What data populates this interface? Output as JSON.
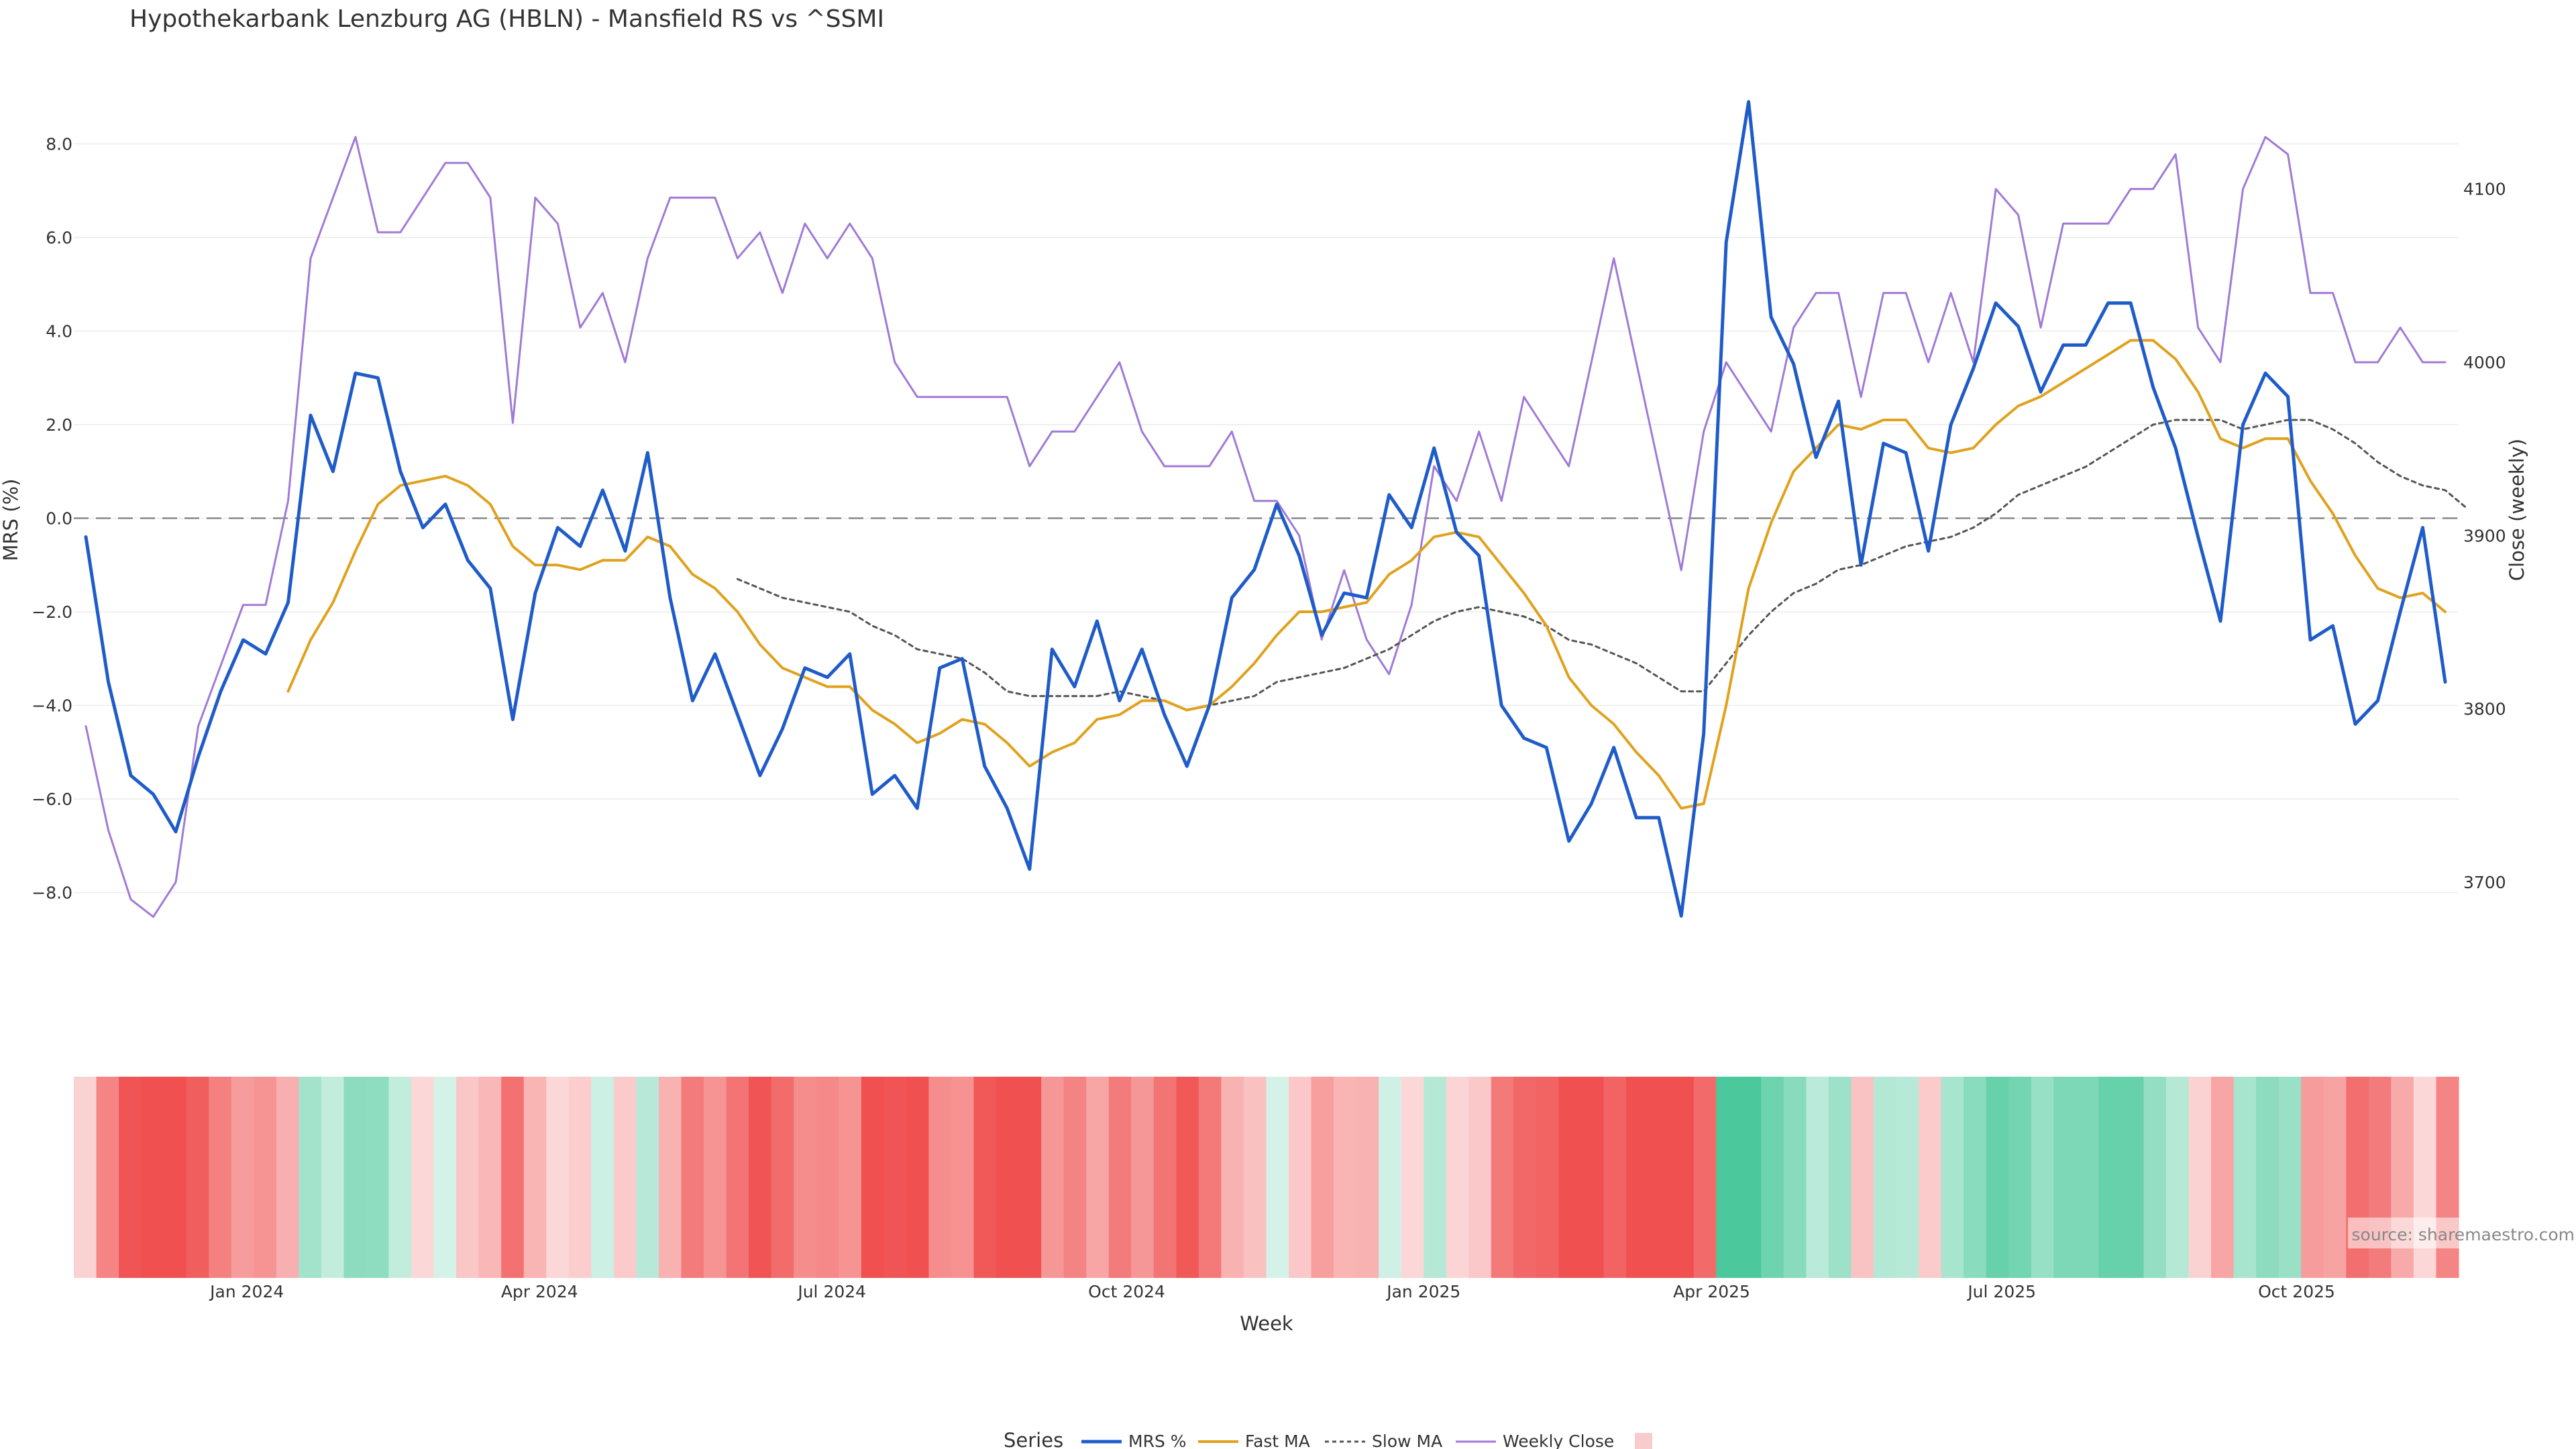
{
  "chart_data": {
    "type": "line",
    "title": "Hypothekarbank Lenzburg AG (HBLN) - Mansfield RS vs ^SSMI",
    "xlabel": "Week",
    "ylabel_left": "MRS (%)",
    "ylabel_right": "Close (weekly)",
    "ylim_left": [
      -10,
      10
    ],
    "ylim_right": [
      3640,
      4180
    ],
    "left_ticks": [
      8,
      6,
      4,
      2,
      0,
      -2,
      -4,
      -6,
      -8
    ],
    "left_tick_labels": [
      "8.0",
      "6.0",
      "4.0",
      "2.0",
      "0.0",
      "−2.0",
      "−4.0",
      "−6.0",
      "−8.0"
    ],
    "right_ticks": [
      4100,
      4000,
      3900,
      3800,
      3700
    ],
    "right_tick_labels": [
      "4100",
      "4000",
      "3900",
      "3800",
      "3700"
    ],
    "x_ticks": [
      {
        "label": "Jan 2024",
        "week": 7.7
      },
      {
        "label": "Apr 2024",
        "week": 20.7
      },
      {
        "label": "Jul 2024",
        "week": 33.7
      },
      {
        "label": "Oct 2024",
        "week": 46.8
      },
      {
        "label": "Jan 2025",
        "week": 60.0
      },
      {
        "label": "Apr 2025",
        "week": 72.8
      },
      {
        "label": "Jul 2025",
        "week": 85.7
      },
      {
        "label": "Oct 2025",
        "week": 98.8
      }
    ],
    "zero_line": 0,
    "series": [
      {
        "name": "MRS %",
        "axis": "left",
        "color": "#1f5cc9",
        "values": [
          -0.4,
          -3.5,
          -5.5,
          -5.9,
          -6.7,
          -5.1,
          -3.7,
          -2.6,
          -2.9,
          -1.8,
          2.2,
          1.0,
          3.1,
          3.0,
          1.0,
          -0.2,
          0.3,
          -0.9,
          -1.5,
          -4.3,
          -1.6,
          -0.2,
          -0.6,
          0.6,
          -0.7,
          1.4,
          -1.7,
          -3.9,
          -2.9,
          -4.2,
          -5.5,
          -4.5,
          -3.2,
          -3.4,
          -2.9,
          -5.9,
          -5.5,
          -6.2,
          -3.2,
          -3.0,
          -5.3,
          -6.2,
          -7.5,
          -2.8,
          -3.6,
          -2.2,
          -3.9,
          -2.8,
          -4.2,
          -5.3,
          -4.0,
          -1.7,
          -1.1,
          0.3,
          -0.8,
          -2.5,
          -1.6,
          -1.7,
          0.5,
          -0.2,
          1.5,
          -0.3,
          -0.8,
          -4.0,
          -4.7,
          -4.9,
          -6.9,
          -6.1,
          -4.9,
          -6.4,
          -6.4,
          -8.5,
          -4.6,
          5.9,
          8.9,
          4.3,
          3.3,
          1.3,
          2.5,
          -1.0,
          1.6,
          1.4,
          -0.7,
          2.0,
          3.2,
          4.6,
          4.1,
          2.7,
          3.7,
          3.7,
          4.6,
          4.6,
          2.8,
          1.5,
          -0.4,
          -2.2,
          2.0,
          3.1,
          2.6,
          -2.6,
          -2.3,
          -4.4,
          -3.9,
          -2.0,
          -0.2,
          -3.5
        ]
      },
      {
        "name": "Fast MA",
        "axis": "left",
        "color": "#e0a21e",
        "start": 9,
        "values": [
          -3.7,
          -2.6,
          -1.8,
          -0.7,
          0.3,
          0.7,
          0.8,
          0.9,
          0.7,
          0.3,
          -0.6,
          -1.0,
          -1.0,
          -1.1,
          -0.9,
          -0.9,
          -0.4,
          -0.6,
          -1.2,
          -1.5,
          -2.0,
          -2.7,
          -3.2,
          -3.4,
          -3.6,
          -3.6,
          -4.1,
          -4.4,
          -4.8,
          -4.6,
          -4.3,
          -4.4,
          -4.8,
          -5.3,
          -5.0,
          -4.8,
          -4.3,
          -4.2,
          -3.9,
          -3.9,
          -4.1,
          -4.0,
          -3.6,
          -3.1,
          -2.5,
          -2.0,
          -2.0,
          -1.9,
          -1.8,
          -1.2,
          -0.9,
          -0.4,
          -0.3,
          -0.4,
          -1.0,
          -1.6,
          -2.3,
          -3.4,
          -4.0,
          -4.4,
          -5.0,
          -5.5,
          -6.2,
          -6.1,
          -4.0,
          -1.5,
          -0.1,
          1.0,
          1.5,
          2.0,
          1.9,
          2.1,
          2.1,
          1.5,
          1.4,
          1.5,
          2.0,
          2.4,
          2.6,
          2.9,
          3.2,
          3.5,
          3.8,
          3.8,
          3.4,
          2.7,
          1.7,
          1.5,
          1.7,
          1.7,
          0.8,
          0.1,
          -0.8,
          -1.5,
          -1.7,
          -1.6,
          -2.0
        ]
      },
      {
        "name": "Slow MA",
        "axis": "left",
        "color": "#555555",
        "dashed": true,
        "start": 29,
        "values": [
          -1.3,
          -1.5,
          -1.7,
          -1.8,
          -1.9,
          -2.0,
          -2.3,
          -2.5,
          -2.8,
          -2.9,
          -3.0,
          -3.3,
          -3.7,
          -3.8,
          -3.8,
          -3.8,
          -3.8,
          -3.7,
          -3.8,
          -3.9,
          -4.1,
          -4.0,
          -3.9,
          -3.8,
          -3.5,
          -3.4,
          -3.3,
          -3.2,
          -3.0,
          -2.8,
          -2.5,
          -2.2,
          -2.0,
          -1.9,
          -2.0,
          -2.1,
          -2.3,
          -2.6,
          -2.7,
          -2.9,
          -3.1,
          -3.4,
          -3.7,
          -3.7,
          -3.1,
          -2.5,
          -2.0,
          -1.6,
          -1.4,
          -1.1,
          -1.0,
          -0.8,
          -0.6,
          -0.5,
          -0.4,
          -0.2,
          0.1,
          0.5,
          0.7,
          0.9,
          1.1,
          1.4,
          1.7,
          2.0,
          2.1,
          2.1,
          2.1,
          1.9,
          2.0,
          2.1,
          2.1,
          1.9,
          1.6,
          1.2,
          0.9,
          0.7,
          0.6,
          0.2
        ]
      },
      {
        "name": "Weekly Close",
        "axis": "right",
        "color": "#a07ad6",
        "values": [
          3790,
          3730,
          3690,
          3680,
          3700,
          3790,
          3825,
          3860,
          3860,
          3920,
          4060,
          4095,
          4130,
          4075,
          4075,
          4095,
          4115,
          4115,
          4095,
          3965,
          4095,
          4080,
          4020,
          4040,
          4000,
          4060,
          4095,
          4095,
          4095,
          4060,
          4075,
          4040,
          4080,
          4060,
          4080,
          4060,
          4000,
          3980,
          3980,
          3980,
          3980,
          3980,
          3940,
          3960,
          3960,
          3980,
          4000,
          3960,
          3940,
          3940,
          3940,
          3960,
          3920,
          3920,
          3900,
          3840,
          3880,
          3840,
          3820,
          3860,
          3940,
          3920,
          3960,
          3920,
          3980,
          3960,
          3940,
          4000,
          4060,
          4000,
          3940,
          3880,
          3960,
          4000,
          3980,
          3960,
          4020,
          4040,
          4040,
          3980,
          4040,
          4040,
          4000,
          4040,
          4000,
          4100,
          4085,
          4020,
          4080,
          4080,
          4080,
          4100,
          4100,
          4120,
          4020,
          4000,
          4100,
          4130,
          4120,
          4040,
          4040,
          4000,
          4000,
          4020,
          4000,
          4000
        ]
      }
    ],
    "heatmap": {
      "description": "weekly MRS strip (red = negative, green = positive)",
      "source": "MRS %"
    },
    "legend": {
      "title": "Series",
      "position": "bottom-center",
      "entries": [
        "MRS %",
        "Fast MA",
        "Slow MA",
        "Weekly Close",
        ""
      ]
    },
    "annotation": "source: sharemaestro.com",
    "colors": {
      "mrs": "#1f5cc9",
      "fast": "#e0a21e",
      "slow": "#555555",
      "close": "#a07ad6",
      "neg": "#f05050",
      "pos": "#4cc99c",
      "grid": "#ececec",
      "zero": "#888888"
    }
  }
}
